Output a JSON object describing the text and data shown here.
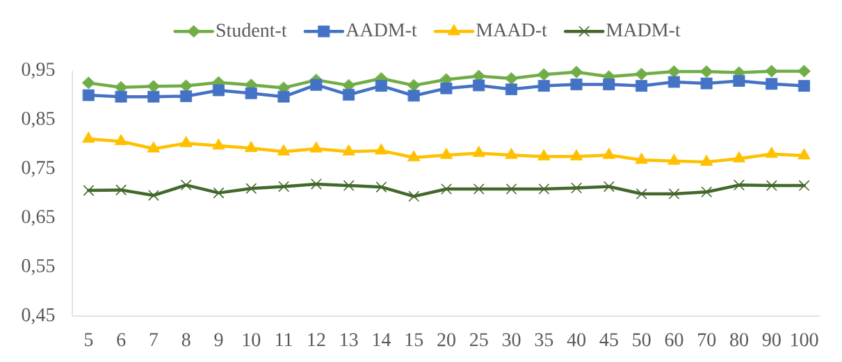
{
  "chart_data": {
    "type": "line",
    "categories": [
      "5",
      "6",
      "7",
      "8",
      "9",
      "10",
      "11",
      "12",
      "13",
      "14",
      "15",
      "20",
      "25",
      "30",
      "35",
      "40",
      "45",
      "50",
      "60",
      "70",
      "80",
      "90",
      "100"
    ],
    "series": [
      {
        "name": "Student-t",
        "color": "#70ad47",
        "marker": "diamond",
        "values": [
          0.925,
          0.916,
          0.918,
          0.919,
          0.926,
          0.921,
          0.915,
          0.931,
          0.92,
          0.934,
          0.92,
          0.932,
          0.939,
          0.934,
          0.942,
          0.947,
          0.938,
          0.943,
          0.948,
          0.948,
          0.946,
          0.949,
          0.949
        ]
      },
      {
        "name": "AADM-t",
        "color": "#4472c4",
        "marker": "square",
        "values": [
          0.9,
          0.897,
          0.897,
          0.898,
          0.91,
          0.904,
          0.897,
          0.921,
          0.901,
          0.919,
          0.899,
          0.914,
          0.92,
          0.912,
          0.919,
          0.922,
          0.922,
          0.919,
          0.927,
          0.924,
          0.929,
          0.923,
          0.919
        ]
      },
      {
        "name": "MAAD-t",
        "color": "#ffc000",
        "marker": "triangle",
        "values": [
          0.811,
          0.806,
          0.791,
          0.802,
          0.797,
          0.792,
          0.785,
          0.791,
          0.785,
          0.787,
          0.773,
          0.778,
          0.782,
          0.778,
          0.775,
          0.775,
          0.778,
          0.768,
          0.766,
          0.764,
          0.771,
          0.78,
          0.777
        ]
      },
      {
        "name": "MADM-t",
        "color": "#43682b",
        "marker": "cross",
        "values": [
          0.706,
          0.707,
          0.696,
          0.717,
          0.701,
          0.71,
          0.714,
          0.719,
          0.716,
          0.713,
          0.694,
          0.709,
          0.709,
          0.709,
          0.709,
          0.711,
          0.714,
          0.699,
          0.699,
          0.703,
          0.717,
          0.716,
          0.716
        ]
      }
    ],
    "ylim": [
      0.45,
      0.95
    ],
    "yticks": [
      {
        "value": 0.45,
        "label": "0,45"
      },
      {
        "value": 0.55,
        "label": "0,55"
      },
      {
        "value": 0.65,
        "label": "0,65"
      },
      {
        "value": 0.75,
        "label": "0,75"
      },
      {
        "value": 0.85,
        "label": "0,85"
      },
      {
        "value": 0.95,
        "label": "0,95"
      }
    ],
    "legend": "top",
    "line_style": "solid"
  }
}
